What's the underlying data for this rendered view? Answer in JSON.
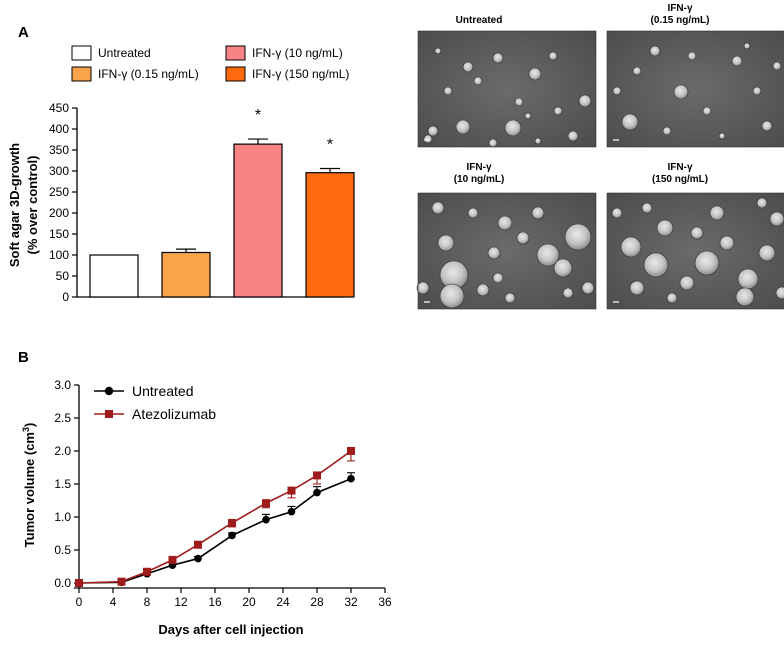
{
  "panel_a_label": "A",
  "panel_b_label": "B",
  "colors": {
    "untreated": "#ffffff",
    "ifn_low": "#f9a34a",
    "ifn_mid": "#f98486",
    "ifn_high": "#ff6a10",
    "line_untreated": "#000000",
    "line_atezolizumab": "#a01c1c"
  },
  "chart_data": [
    {
      "type": "bar",
      "panel": "A",
      "ylabel_line1": "Soft agar 3D-growth",
      "ylabel_line2": "(% over control)",
      "ylim": [
        0,
        450
      ],
      "yticks": [
        0,
        50,
        100,
        150,
        200,
        250,
        300,
        350,
        400,
        450
      ],
      "categories": [
        "Untreated",
        "IFN-γ (0.15 ng/mL)",
        "IFN-γ (10 ng/mL)",
        "IFN-γ (150 ng/mL)"
      ],
      "values": [
        100,
        106,
        364,
        296
      ],
      "errors": [
        0,
        8,
        12,
        10
      ],
      "significance": [
        "",
        "",
        "*",
        "*"
      ],
      "legend": [
        "Untreated",
        "IFN-γ (0.15 ng/mL)",
        "IFN-γ (10 ng/mL)",
        "IFN-γ (150 ng/mL)"
      ],
      "legend_position": "top"
    },
    {
      "type": "line",
      "panel": "B",
      "xlabel": "Days after cell injection",
      "ylabel": "Tumor volume (cm",
      "ylabel_sup": "3",
      "ylabel_close": ")",
      "xlim": [
        0,
        36
      ],
      "ylim": [
        0,
        3.0
      ],
      "xticks": [
        "0",
        "4",
        "8",
        "12",
        "16",
        "20",
        "24",
        "28",
        "32",
        "36"
      ],
      "yticks": [
        "0.0",
        "0.5",
        "1.0",
        "1.5",
        "2.0",
        "2.5",
        "3.0"
      ],
      "x": [
        0,
        5,
        8,
        11,
        14,
        18,
        22,
        25,
        28,
        32
      ],
      "series": [
        {
          "name": "Untreated",
          "marker": "circle",
          "values": [
            0.0,
            0.01,
            0.14,
            0.27,
            0.37,
            0.72,
            0.96,
            1.08,
            1.37,
            1.58
          ],
          "errors": [
            0,
            0,
            0.02,
            0.03,
            0.03,
            0.04,
            0.08,
            0.08,
            0.09,
            0.09
          ]
        },
        {
          "name": "Atezolizumab",
          "marker": "square",
          "values": [
            0.0,
            0.02,
            0.17,
            0.35,
            0.58,
            0.91,
            1.21,
            1.4,
            1.63,
            2.0
          ],
          "errors": [
            0,
            0,
            0.02,
            0.03,
            0.04,
            0.06,
            0.07,
            0.11,
            0.13,
            0.15
          ]
        }
      ],
      "legend_position": "top-left"
    }
  ],
  "micrographs": [
    {
      "title_line1": "Untreated",
      "title_line2": ""
    },
    {
      "title_line1": "IFN-γ",
      "title_line2": "(0.15 ng/mL)"
    },
    {
      "title_line1": "IFN-γ",
      "title_line2": "(10 ng/mL)"
    },
    {
      "title_line1": "IFN-γ",
      "title_line2": "(150 ng/mL)"
    }
  ]
}
